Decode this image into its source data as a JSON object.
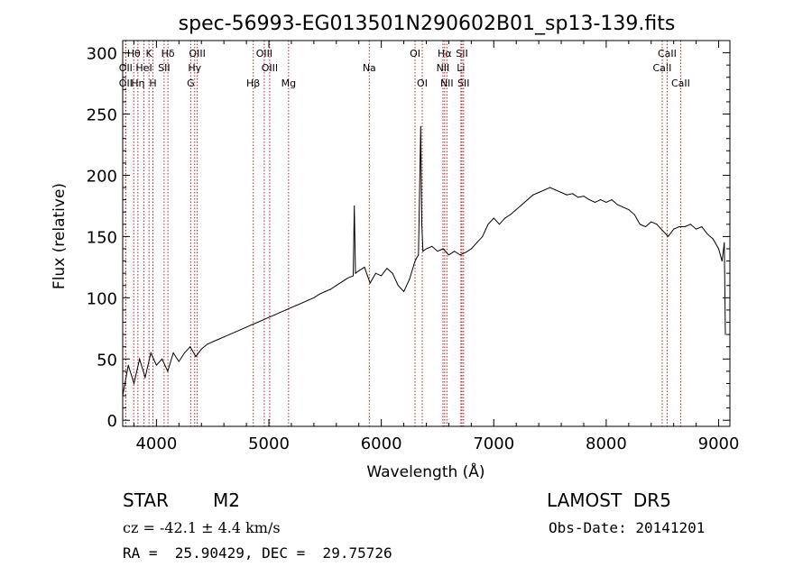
{
  "chart_data": {
    "type": "line",
    "title": "spec-56993-EG013501N290602B01_sp13-139.fits",
    "xlabel": "Wavelength (Å)",
    "ylabel": "Flux (relative)",
    "xlim": [
      3700,
      9100
    ],
    "ylim": [
      -5,
      310
    ],
    "x_ticks": [
      4000,
      5000,
      6000,
      7000,
      8000,
      9000
    ],
    "y_ticks": [
      0,
      50,
      100,
      150,
      200,
      250,
      300
    ],
    "grid": false,
    "series": [
      {
        "x": [
          3700,
          3750,
          3800,
          3850,
          3900,
          3950,
          4000,
          4050,
          4100,
          4150,
          4200,
          4250,
          4300,
          4350,
          4400,
          4450,
          4500,
          4550,
          4600,
          4650,
          4700,
          4750,
          4800,
          4850,
          4900,
          4950,
          5000,
          5050,
          5100,
          5150,
          5200,
          5250,
          5300,
          5350,
          5400,
          5450,
          5500,
          5550,
          5600,
          5650,
          5700,
          5750,
          5760,
          5770,
          5800,
          5850,
          5900,
          5950,
          6000,
          6050,
          6100,
          6150,
          6200,
          6250,
          6300,
          6330,
          6350,
          6360,
          6370,
          6400,
          6450,
          6500,
          6550,
          6600,
          6650,
          6700,
          6750,
          6800,
          6850,
          6900,
          6950,
          7000,
          7050,
          7100,
          7150,
          7200,
          7250,
          7300,
          7350,
          7400,
          7450,
          7500,
          7550,
          7600,
          7650,
          7700,
          7750,
          7800,
          7850,
          7900,
          7950,
          8000,
          8050,
          8100,
          8150,
          8200,
          8250,
          8300,
          8350,
          8400,
          8450,
          8500,
          8550,
          8600,
          8650,
          8700,
          8750,
          8800,
          8850,
          8900,
          8950,
          9000,
          9030,
          9050,
          9060
        ],
        "y": [
          20,
          45,
          30,
          50,
          35,
          55,
          45,
          50,
          40,
          55,
          48,
          55,
          60,
          52,
          58,
          62,
          64,
          66,
          68,
          70,
          72,
          74,
          76,
          78,
          80,
          82,
          84,
          86,
          88,
          90,
          92,
          94,
          96,
          98,
          100,
          103,
          105,
          107,
          110,
          113,
          116,
          118,
          175,
          120,
          122,
          125,
          112,
          120,
          118,
          124,
          120,
          110,
          105,
          115,
          130,
          135,
          240,
          160,
          138,
          140,
          142,
          138,
          140,
          135,
          138,
          135,
          137,
          140,
          145,
          150,
          160,
          165,
          160,
          165,
          168,
          172,
          176,
          180,
          184,
          186,
          188,
          190,
          188,
          186,
          184,
          185,
          182,
          183,
          180,
          178,
          180,
          178,
          180,
          176,
          174,
          172,
          168,
          160,
          158,
          162,
          160,
          155,
          150,
          156,
          158,
          158,
          160,
          156,
          158,
          152,
          148,
          140,
          130,
          145,
          70
        ]
      }
    ],
    "line_markers": [
      {
        "label": "Hδ",
        "x": 4102,
        "row": 1
      },
      {
        "label": "Hγ",
        "x": 4340,
        "row": 2
      },
      {
        "label": "Hβ",
        "x": 4861,
        "row": 3
      },
      {
        "label": "Hα",
        "x": 6563,
        "row": 1
      },
      {
        "label": "K",
        "x": 3934,
        "row": 1
      },
      {
        "label": "H",
        "x": 3969,
        "row": 3
      },
      {
        "label": "G",
        "x": 4305,
        "row": 3
      },
      {
        "label": "Mg",
        "x": 5175,
        "row": 3
      },
      {
        "label": "Na",
        "x": 5893,
        "row": 2
      },
      {
        "label": "OIII",
        "x": 4363,
        "row": 1
      },
      {
        "label": "OIII",
        "x": 4959,
        "row": 1
      },
      {
        "label": "OIII",
        "x": 5007,
        "row": 2
      },
      {
        "label": "OI",
        "x": 6300,
        "row": 1
      },
      {
        "label": "OI",
        "x": 6364,
        "row": 3
      },
      {
        "label": "NII",
        "x": 6548,
        "row": 2
      },
      {
        "label": "NII",
        "x": 6583,
        "row": 3
      },
      {
        "label": "SII",
        "x": 6717,
        "row": 1
      },
      {
        "label": "SII",
        "x": 6731,
        "row": 3
      },
      {
        "label": "Li",
        "x": 6708,
        "row": 2
      },
      {
        "label": "SII",
        "x": 4068,
        "row": 2
      },
      {
        "label": "HeI",
        "x": 3889,
        "row": 2
      },
      {
        "label": "OII",
        "x": 3727,
        "row": 2
      },
      {
        "label": "OII",
        "x": 3727,
        "row": 3
      },
      {
        "label": "Hθ",
        "x": 3798,
        "row": 1
      },
      {
        "label": "Hη",
        "x": 3835,
        "row": 3
      },
      {
        "label": "CaII",
        "x": 8498,
        "row": 2
      },
      {
        "label": "CaII",
        "x": 8542,
        "row": 1
      },
      {
        "label": "CaII",
        "x": 8662,
        "row": 3
      }
    ]
  },
  "info": {
    "object_class": "STAR",
    "subclass": "M2",
    "survey": "LAMOST  DR5",
    "redshift_line": "cz = -42.1 ± 4.4 km/s",
    "obs_date": "Obs-Date: 20141201",
    "coords": "RA =  25.90429, DEC =  29.75726"
  },
  "colors": {
    "axes": "#000000",
    "spectrum": "#000000",
    "marker_lines": "#b22222"
  }
}
